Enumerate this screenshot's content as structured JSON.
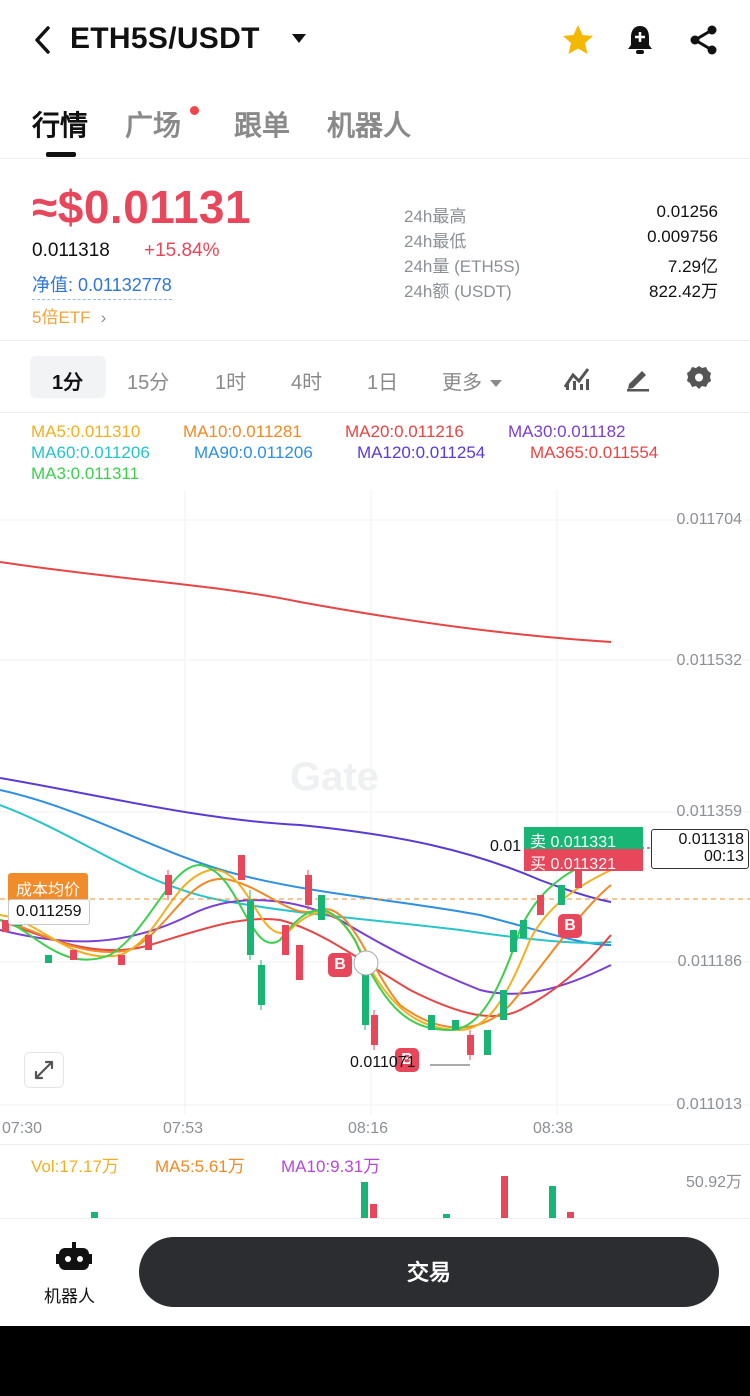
{
  "header": {
    "pair": "ETH5S/USDT",
    "icons": [
      "back-icon",
      "caret-down-icon",
      "star-icon",
      "bell-icon",
      "share-icon"
    ],
    "star_color": "#f5b800"
  },
  "tabs": [
    {
      "label": "行情",
      "active": true
    },
    {
      "label": "广场",
      "badge": true
    },
    {
      "label": "跟单"
    },
    {
      "label": "机器人"
    }
  ],
  "price": {
    "main": "≈$0.01131",
    "last": "0.011318",
    "change": "+15.84%",
    "nav": "净值: 0.01132778",
    "etf": "5倍ETF",
    "up_color": "#e8465b"
  },
  "stats": [
    {
      "label": "24h最高",
      "value": "0.01256"
    },
    {
      "label": "24h最低",
      "value": "0.009756"
    },
    {
      "label": "24h量 (ETH5S)",
      "value": "7.29亿"
    },
    {
      "label": "24h额 (USDT)",
      "value": "822.42万"
    }
  ],
  "timeframes": {
    "items": [
      "1分",
      "15分",
      "1时",
      "4时",
      "1日",
      "更多"
    ],
    "active": "1分",
    "tools": [
      "indicator-icon",
      "draw-icon",
      "settings-icon"
    ]
  },
  "ma_legend": {
    "row1": [
      {
        "text": "MA5:0.011310",
        "color": "#f0b020"
      },
      {
        "text": "MA10:0.011281",
        "color": "#f08a24"
      },
      {
        "text": "MA20:0.011216",
        "color": "#e84545"
      },
      {
        "text": "MA30:0.011182",
        "color": "#7b3fd1"
      }
    ],
    "row2": [
      {
        "text": "MA60:0.011206",
        "color": "#27c4c9"
      },
      {
        "text": "MA90:0.011206",
        "color": "#2f8fe0"
      },
      {
        "text": "MA120:0.011254",
        "color": "#5b3ad6"
      },
      {
        "text": "MA365:0.011554",
        "color": "#e84545"
      }
    ],
    "row3": [
      {
        "text": "MA3:0.011311",
        "color": "#3ccf4e"
      }
    ]
  },
  "chart": {
    "watermark": "Gate",
    "y_labels": [
      "0.011704",
      "0.011532",
      "0.011359",
      "0.011186",
      "0.011013"
    ],
    "x_labels": [
      "07:30",
      "07:53",
      "08:16",
      "08:38"
    ],
    "cost_label": "成本均价",
    "cost_value": "0.011259",
    "sell_tag": "卖  0.011331",
    "buy_tag": "买  0.011321",
    "last_price": "0.011318",
    "countdown": "00:13",
    "partial_label": "0.01",
    "min_label": "0.011071",
    "b_marker": "B"
  },
  "volume": {
    "items": [
      {
        "text": "Vol:17.17万",
        "color": "#f0b020"
      },
      {
        "text": "MA5:5.61万",
        "color": "#f08a24"
      },
      {
        "text": "MA10:9.31万",
        "color": "#b548d8"
      }
    ],
    "max_label": "50.92万"
  },
  "bottom": {
    "robot_label": "机器人",
    "trade_label": "交易"
  }
}
